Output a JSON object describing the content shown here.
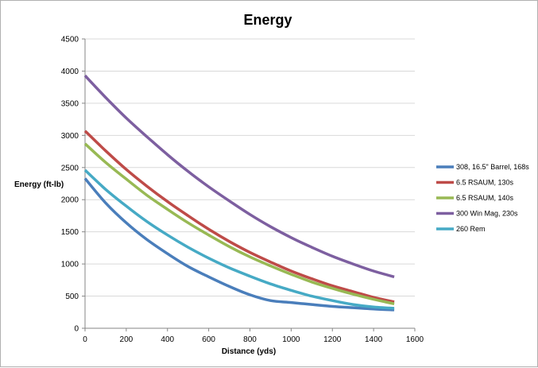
{
  "chart_data": {
    "type": "line",
    "title": "Energy",
    "xlabel": "Distance (yds)",
    "ylabel": "Energy (ft-lb)",
    "xlim": [
      0,
      1600
    ],
    "ylim": [
      0,
      4500
    ],
    "xticks": [
      0,
      200,
      400,
      600,
      800,
      1000,
      1200,
      1400,
      1600
    ],
    "yticks": [
      0,
      500,
      1000,
      1500,
      2000,
      2500,
      3000,
      3500,
      4000,
      4500
    ],
    "grid": "horizontal",
    "legend_position": "right",
    "series": [
      {
        "name": "308, 16.5\" Barrel, 168s",
        "color": "#4a7ebb",
        "x": [
          0,
          100,
          200,
          300,
          400,
          500,
          600,
          700,
          800,
          900,
          1000,
          1100,
          1200,
          1300,
          1400,
          1500
        ],
        "y": [
          2330,
          1950,
          1640,
          1380,
          1160,
          960,
          800,
          650,
          520,
          430,
          400,
          370,
          340,
          320,
          300,
          285
        ]
      },
      {
        "name": "6.5 RSAUM, 130s",
        "color": "#be4b48",
        "x": [
          0,
          100,
          200,
          300,
          400,
          500,
          600,
          700,
          800,
          900,
          1000,
          1100,
          1200,
          1300,
          1400,
          1500
        ],
        "y": [
          3070,
          2760,
          2470,
          2210,
          1970,
          1750,
          1540,
          1350,
          1180,
          1030,
          890,
          770,
          660,
          570,
          480,
          410
        ]
      },
      {
        "name": "6.5 RSAUM, 140s",
        "color": "#98b954",
        "x": [
          0,
          100,
          200,
          300,
          400,
          500,
          600,
          700,
          800,
          900,
          1000,
          1100,
          1200,
          1300,
          1400,
          1500
        ],
        "y": [
          2870,
          2580,
          2320,
          2070,
          1850,
          1640,
          1450,
          1270,
          1110,
          970,
          840,
          720,
          620,
          530,
          450,
          380
        ]
      },
      {
        "name": "300 Win Mag, 230s",
        "color": "#7d5fa0",
        "x": [
          0,
          100,
          200,
          300,
          400,
          500,
          600,
          700,
          800,
          900,
          1000,
          1100,
          1200,
          1300,
          1400,
          1500
        ],
        "y": [
          3930,
          3590,
          3270,
          2980,
          2700,
          2440,
          2200,
          1980,
          1770,
          1580,
          1410,
          1260,
          1120,
          1000,
          890,
          800
        ]
      },
      {
        "name": "260 Rem",
        "color": "#46aac5",
        "x": [
          0,
          100,
          200,
          300,
          400,
          500,
          600,
          700,
          800,
          900,
          1000,
          1100,
          1200,
          1300,
          1400,
          1500
        ],
        "y": [
          2460,
          2160,
          1900,
          1660,
          1450,
          1260,
          1090,
          940,
          810,
          690,
          590,
          500,
          430,
          370,
          330,
          310
        ]
      }
    ]
  }
}
